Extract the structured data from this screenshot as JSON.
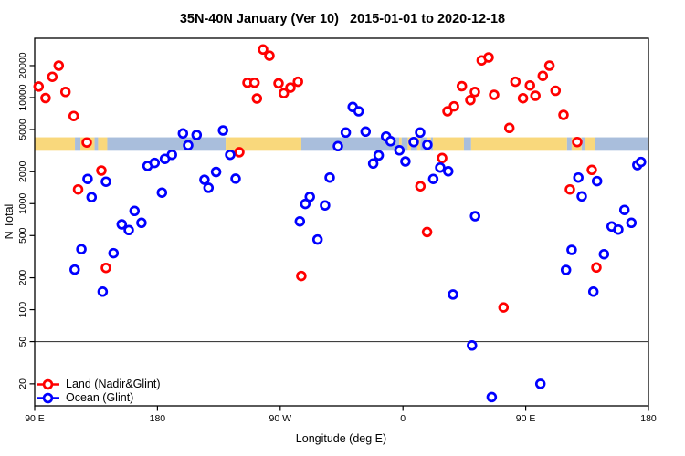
{
  "chart_data": {
    "type": "scatter",
    "title": "35N-40N January (Ver 10)   2015-01-01 to 2020-12-18",
    "xlabel": "Longitude (deg E)",
    "ylabel": "N Total",
    "x_axis": {
      "lim": [
        90,
        540
      ],
      "ticks": [
        90,
        180,
        270,
        360,
        450,
        540
      ],
      "labels": [
        "90 E",
        "180",
        "90 W",
        "0",
        "90 E",
        "180"
      ],
      "note": "longitude wraps: 90E eastward through 180, 90W, 0, back to 180"
    },
    "y_axis": {
      "scale": "log",
      "lim": [
        12.4,
        36200
      ],
      "ticks": [
        20,
        50,
        100,
        200,
        500,
        1000,
        2000,
        5000,
        10000,
        20000
      ]
    },
    "reference_line_y": 50,
    "grid": "off",
    "legend": {
      "position": "bottom-left",
      "entries": [
        "Land (Nadir&Glint)",
        "Ocean (Glint)"
      ]
    },
    "land_ocean_strip": {
      "description": "horizontal land/ocean map strip",
      "value_range": [
        3150,
        4220
      ],
      "land_color": "#F9D87C",
      "ocean_color": "#A9BEDC",
      "segments": [
        {
          "from": 90,
          "to": 119.5,
          "type": "land"
        },
        {
          "from": 119.5,
          "to": 123.5,
          "type": "ocean"
        },
        {
          "from": 123.5,
          "to": 133.9,
          "type": "land"
        },
        {
          "from": 133.9,
          "to": 136.5,
          "type": "ocean"
        },
        {
          "from": 136.5,
          "to": 143.2,
          "type": "land"
        },
        {
          "from": 143.2,
          "to": 230,
          "type": "ocean"
        },
        {
          "from": 230,
          "to": 285.5,
          "type": "land"
        },
        {
          "from": 285.5,
          "to": 357.2,
          "type": "ocean"
        },
        {
          "from": 357.2,
          "to": 359,
          "type": "land"
        },
        {
          "from": 359,
          "to": 363.5,
          "type": "ocean"
        },
        {
          "from": 363.5,
          "to": 365.8,
          "type": "land"
        },
        {
          "from": 365.8,
          "to": 370.5,
          "type": "ocean"
        },
        {
          "from": 370.5,
          "to": 372.8,
          "type": "land"
        },
        {
          "from": 372.8,
          "to": 377.5,
          "type": "ocean"
        },
        {
          "from": 377.5,
          "to": 380.5,
          "type": "land"
        },
        {
          "from": 380.5,
          "to": 382,
          "type": "ocean"
        },
        {
          "from": 382,
          "to": 404.7,
          "type": "land"
        },
        {
          "from": 404.7,
          "to": 410,
          "type": "ocean"
        },
        {
          "from": 410,
          "to": 480.3,
          "type": "land"
        },
        {
          "from": 480.3,
          "to": 483.7,
          "type": "ocean"
        },
        {
          "from": 483.7,
          "to": 491,
          "type": "land"
        },
        {
          "from": 491,
          "to": 493.7,
          "type": "ocean"
        },
        {
          "from": 493.7,
          "to": 501,
          "type": "land"
        },
        {
          "from": 501,
          "to": 540,
          "type": "ocean"
        }
      ]
    },
    "series": [
      {
        "name": "Land (Nadir&Glint)",
        "color": "#FF0000",
        "marker": "open-circle",
        "points": [
          [
            92.9,
            12700
          ],
          [
            98.0,
            9900
          ],
          [
            102.9,
            15700
          ],
          [
            107.6,
            20000
          ],
          [
            112.6,
            11300
          ],
          [
            118.6,
            6700
          ],
          [
            121.8,
            1360
          ],
          [
            128.2,
            3770
          ],
          [
            138.9,
            2050
          ],
          [
            142.2,
            248
          ],
          [
            240.0,
            3050
          ],
          [
            246.0,
            13800
          ],
          [
            251.2,
            13800
          ],
          [
            252.9,
            9800
          ],
          [
            257.4,
            28400
          ],
          [
            262.1,
            24800
          ],
          [
            268.8,
            13600
          ],
          [
            272.6,
            11000
          ],
          [
            277.5,
            12400
          ],
          [
            283.0,
            14100
          ],
          [
            285.5,
            208
          ],
          [
            372.8,
            1460
          ],
          [
            377.7,
            540
          ],
          [
            388.7,
            2690
          ],
          [
            392.7,
            7430
          ],
          [
            397.4,
            8260
          ],
          [
            403.2,
            12800
          ],
          [
            409.4,
            9480
          ],
          [
            412.8,
            11300
          ],
          [
            417.7,
            22400
          ],
          [
            422.8,
            23900
          ],
          [
            426.8,
            10600
          ],
          [
            433.7,
            105
          ],
          [
            438.0,
            5170
          ],
          [
            442.4,
            14100
          ],
          [
            448.0,
            9860
          ],
          [
            453.1,
            13000
          ],
          [
            457.1,
            10400
          ],
          [
            462.5,
            16000
          ],
          [
            467.4,
            20000
          ],
          [
            471.9,
            11600
          ],
          [
            477.7,
            6860
          ],
          [
            482.4,
            1360
          ],
          [
            487.8,
            3810
          ],
          [
            498.5,
            2080
          ],
          [
            501.8,
            250
          ]
        ]
      },
      {
        "name": "Ocean (Glint)",
        "color": "#0000FF",
        "marker": "open-circle",
        "points": [
          [
            119.3,
            239
          ],
          [
            124.2,
            372
          ],
          [
            128.8,
            1710
          ],
          [
            131.7,
            1150
          ],
          [
            139.8,
            148
          ],
          [
            142.2,
            1610
          ],
          [
            147.8,
            341
          ],
          [
            153.8,
            638
          ],
          [
            159.0,
            563
          ],
          [
            163.2,
            853
          ],
          [
            168.3,
            660
          ],
          [
            172.8,
            2270
          ],
          [
            177.9,
            2420
          ],
          [
            183.3,
            1270
          ],
          [
            185.5,
            2640
          ],
          [
            190.6,
            2890
          ],
          [
            198.7,
            4590
          ],
          [
            202.5,
            3550
          ],
          [
            208.7,
            4440
          ],
          [
            214.5,
            1680
          ],
          [
            217.4,
            1410
          ],
          [
            223.0,
            1990
          ],
          [
            228.1,
            4900
          ],
          [
            233.3,
            2890
          ],
          [
            237.3,
            1720
          ],
          [
            284.4,
            681
          ],
          [
            288.4,
            993
          ],
          [
            291.7,
            1160
          ],
          [
            297.4,
            459
          ],
          [
            302.9,
            962
          ],
          [
            306.3,
            1760
          ],
          [
            312.3,
            3480
          ],
          [
            318.1,
            4680
          ],
          [
            323.2,
            8150
          ],
          [
            327.5,
            7430
          ],
          [
            332.6,
            4780
          ],
          [
            338.2,
            2390
          ],
          [
            342.2,
            2850
          ],
          [
            347.6,
            4290
          ],
          [
            350.9,
            3880
          ],
          [
            357.4,
            3180
          ],
          [
            361.8,
            2500
          ],
          [
            367.9,
            3810
          ],
          [
            372.6,
            4680
          ],
          [
            377.9,
            3590
          ],
          [
            382.2,
            1710
          ],
          [
            387.3,
            2190
          ],
          [
            393.2,
            2020
          ],
          [
            396.7,
            139
          ],
          [
            410.6,
            46
          ],
          [
            412.9,
            762
          ],
          [
            425.1,
            15
          ],
          [
            460.8,
            20
          ],
          [
            479.5,
            237
          ],
          [
            483.7,
            366
          ],
          [
            488.6,
            1760
          ],
          [
            491.1,
            1170
          ],
          [
            499.6,
            148
          ],
          [
            502.3,
            1630
          ],
          [
            507.4,
            334
          ],
          [
            513.0,
            609
          ],
          [
            517.9,
            570
          ],
          [
            522.4,
            871
          ],
          [
            527.5,
            660
          ],
          [
            531.8,
            2310
          ],
          [
            534.5,
            2470
          ]
        ]
      }
    ]
  }
}
